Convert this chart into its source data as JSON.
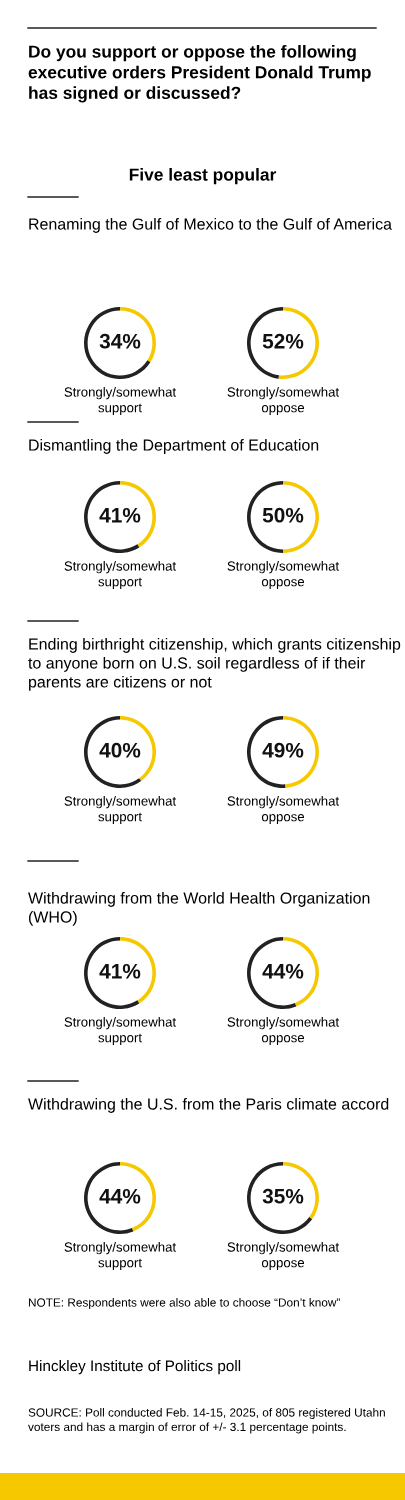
{
  "chart_data": [
    {
      "type": "other",
      "title": "Do you support or oppose the following executive orders President Donald Trump has signed or discussed?",
      "subtitle": "Five least popular"
    },
    {
      "type": "donut",
      "title": "Renaming the Gulf of Mexico to the Gulf of America",
      "xlabel": "Strongly/somewhat support",
      "categories": [
        null,
        null
      ],
      "values": [
        34,
        66
      ],
      "colors": [
        "#f5c800",
        "#222222"
      ],
      "value_labels": [
        "34%",
        null
      ]
    },
    {
      "type": "donut",
      "xlabel": "Strongly/somewhat oppose",
      "categories": [
        null,
        null
      ],
      "values": [
        52,
        48
      ],
      "colors": [
        "#f5c800",
        "#222222"
      ],
      "value_labels": [
        "52%",
        null
      ]
    },
    {
      "type": "donut",
      "title": "Dismantling the Department of Education",
      "xlabel": "Strongly/somewhat support",
      "categories": [
        null,
        null
      ],
      "values": [
        41,
        59
      ],
      "colors": [
        "#f5c800",
        "#222222"
      ],
      "value_labels": [
        "41%",
        null
      ]
    },
    {
      "type": "donut",
      "xlabel": "Strongly/somewhat oppose",
      "categories": [
        null,
        null
      ],
      "values": [
        50,
        50
      ],
      "colors": [
        "#f5c800",
        "#222222"
      ],
      "value_labels": [
        "50%",
        null
      ]
    },
    {
      "type": "donut",
      "title": "Ending birthright citizenship, which grants citizenship to anyone born on U.S. soil regardless of if their parents are citizens or not",
      "xlabel": "Strongly/somewhat support",
      "categories": [
        null,
        null
      ],
      "values": [
        40,
        60
      ],
      "colors": [
        "#f5c800",
        "#222222"
      ],
      "value_labels": [
        "40%",
        null
      ]
    },
    {
      "type": "donut",
      "xlabel": "Strongly/somewhat oppose",
      "categories": [
        null,
        null
      ],
      "values": [
        49,
        51
      ],
      "colors": [
        "#f5c800",
        "#222222"
      ],
      "value_labels": [
        "49%",
        null
      ]
    },
    {
      "type": "donut",
      "title": "Withdrawing from the World Health Organization (WHO)",
      "xlabel": "Strongly/somewhat support",
      "categories": [
        null,
        null
      ],
      "values": [
        41,
        59
      ],
      "colors": [
        "#f5c800",
        "#222222"
      ],
      "value_labels": [
        "41%",
        null
      ]
    },
    {
      "type": "donut",
      "xlabel": "Strongly/somewhat oppose",
      "categories": [
        null,
        null
      ],
      "values": [
        44,
        56
      ],
      "colors": [
        "#f5c800",
        "#222222"
      ],
      "value_labels": [
        "44%",
        null
      ]
    },
    {
      "type": "donut",
      "title": "Withdrawing the U.S. from the Paris climate accord",
      "xlabel": "Strongly/somewhat support",
      "categories": [
        null,
        null
      ],
      "values": [
        44,
        56
      ],
      "colors": [
        "#f5c800",
        "#222222"
      ],
      "value_labels": [
        "44%",
        null
      ]
    },
    {
      "type": "donut",
      "xlabel": "Strongly/somewhat oppose",
      "categories": [
        null,
        null
      ],
      "values": [
        35,
        65
      ],
      "colors": [
        "#f5c800",
        "#222222"
      ],
      "value_labels": [
        "35%",
        null
      ]
    },
    {
      "type": "other",
      "annotations": [
        "NOTE: Respondents were also able to choose “Don’t know”",
        "Hinckley Institute of Politics poll",
        "SOURCE: Poll conducted Feb. 14-15, 2025, of 805 registered Utahn voters and has a margin of error of +/- 3.1 percentage points."
      ]
    }
  ]
}
